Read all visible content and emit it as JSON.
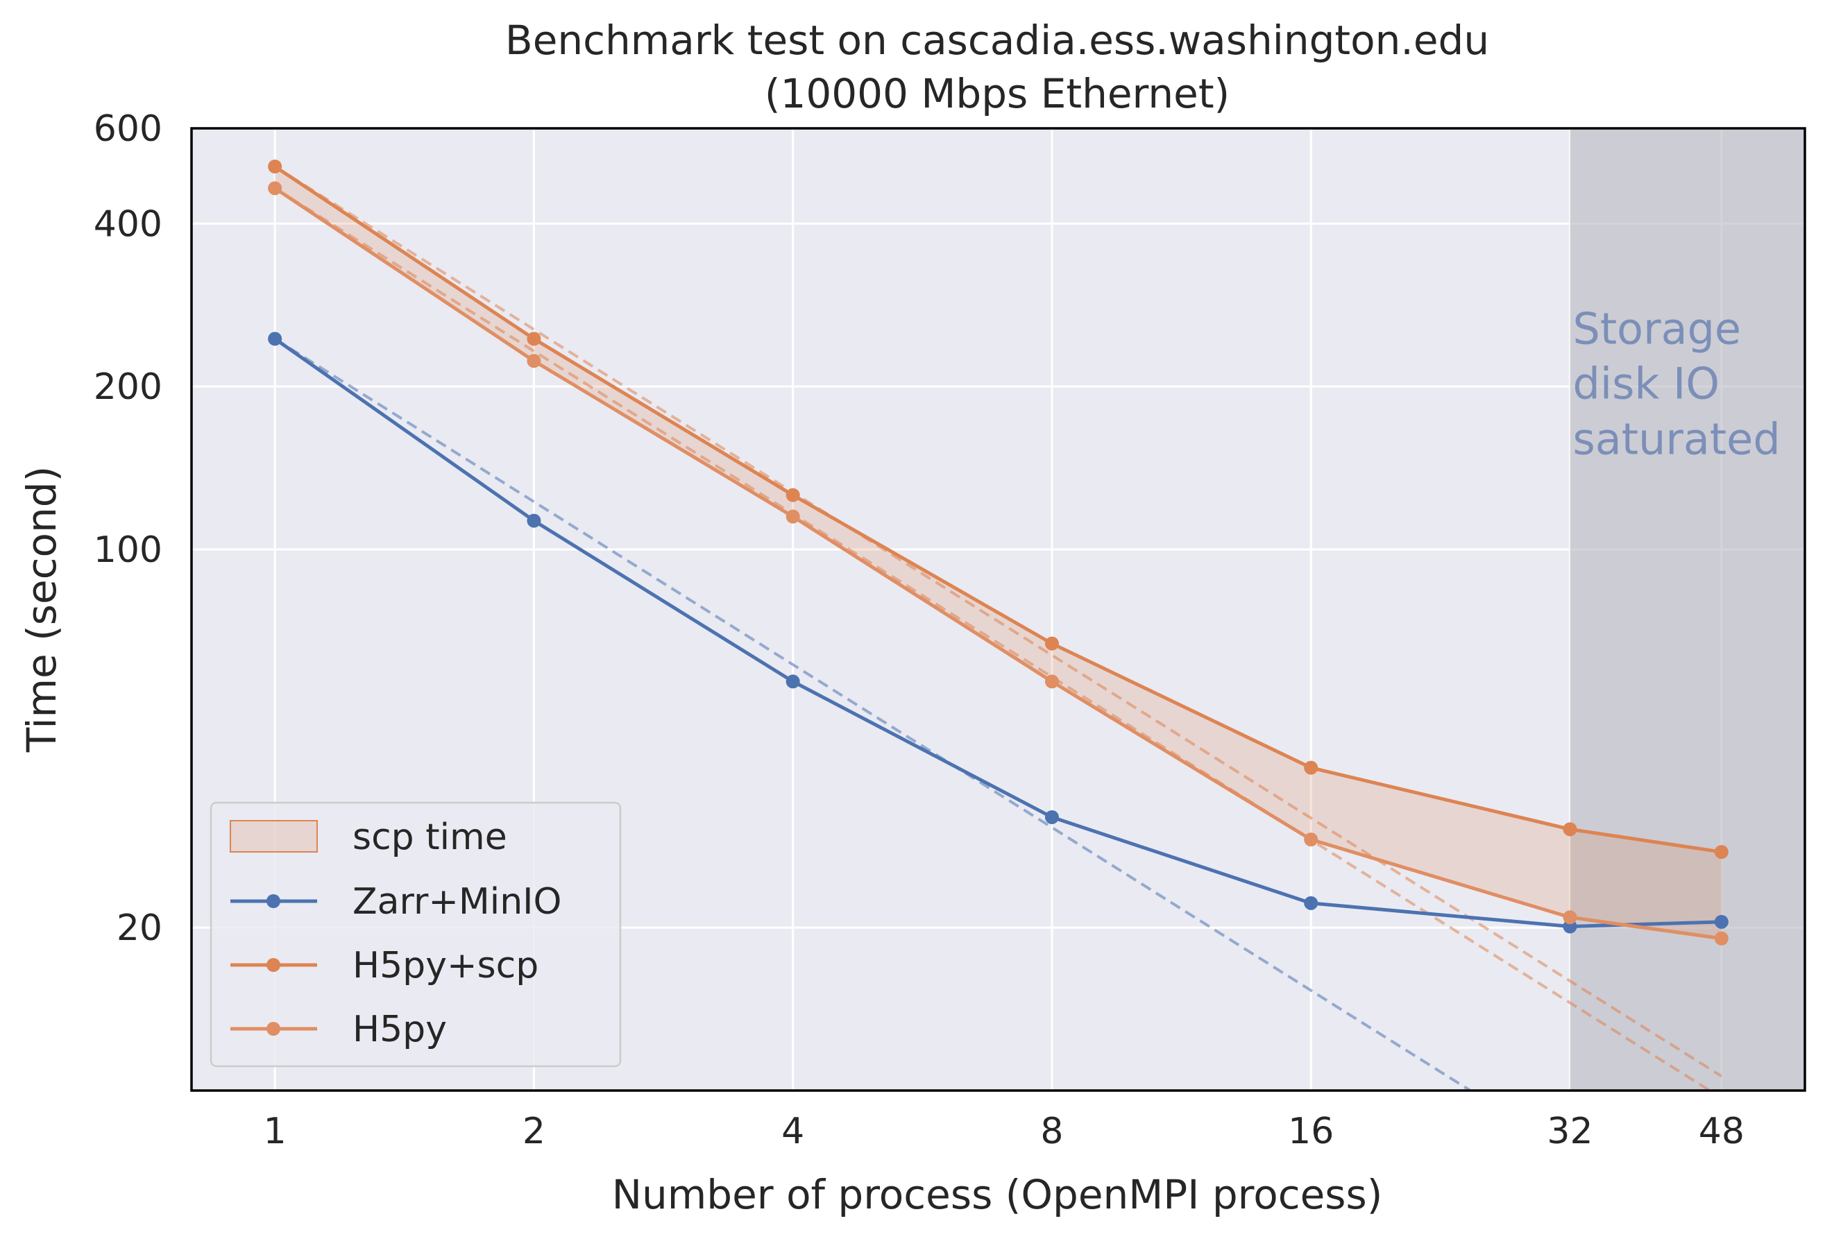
{
  "chart_data": {
    "type": "line",
    "title": "Benchmark test on cascadia.ess.washington.edu",
    "subtitle": "(10000 Mbps Ethernet)",
    "xlabel": "Number of process (OpenMPI process)",
    "ylabel": "Time (second)",
    "x_scale": "log",
    "y_scale": "log",
    "xlim": [
      0.8,
      60
    ],
    "ylim": [
      10,
      600
    ],
    "x_ticks": [
      1,
      2,
      4,
      8,
      16,
      32,
      48
    ],
    "x_tick_labels": [
      "1",
      "2",
      "4",
      "8",
      "16",
      "32",
      "48"
    ],
    "y_ticks": [
      20,
      100,
      200,
      400,
      600
    ],
    "y_tick_labels": [
      "20",
      "100",
      "200",
      "400",
      "600"
    ],
    "grid": true,
    "legend_position": "lower-left",
    "x": [
      1,
      2,
      4,
      8,
      16,
      32,
      48
    ],
    "series": [
      {
        "name": "Zarr+MinIO",
        "values": [
          245,
          113,
          57,
          32,
          22.2,
          20.1,
          20.5
        ],
        "color": "#4c72b0"
      },
      {
        "name": "H5py+scp",
        "values": [
          510,
          245,
          126,
          67,
          39.5,
          30.4,
          27.6
        ],
        "color": "#dd8452"
      },
      {
        "name": "H5py",
        "values": [
          465,
          223,
          115,
          57,
          29.1,
          20.9,
          19.1
        ],
        "color": "#e08e63"
      }
    ],
    "fill_between": {
      "name": "scp time",
      "between": [
        "H5py+scp",
        "H5py"
      ],
      "color": "#dd8452"
    },
    "ideal_scaling": [
      {
        "of": "Zarr+MinIO",
        "values": [
          245,
          122.5,
          61.25,
          30.63,
          15.31,
          7.66,
          5.1
        ],
        "color": "#4c72b0"
      },
      {
        "of": "H5py+scp",
        "values": [
          510,
          255,
          127.5,
          63.75,
          31.88,
          15.94,
          10.63
        ],
        "color": "#dd8452"
      },
      {
        "of": "H5py",
        "values": [
          465,
          232.5,
          116.25,
          58.13,
          29.06,
          14.53,
          9.69
        ],
        "color": "#dd8452"
      }
    ],
    "shaded_region": {
      "x_from": 32,
      "x_to": 60,
      "label_lines": [
        "Storage",
        "disk IO",
        "saturated"
      ],
      "label_color": "#7b8fb8"
    }
  }
}
